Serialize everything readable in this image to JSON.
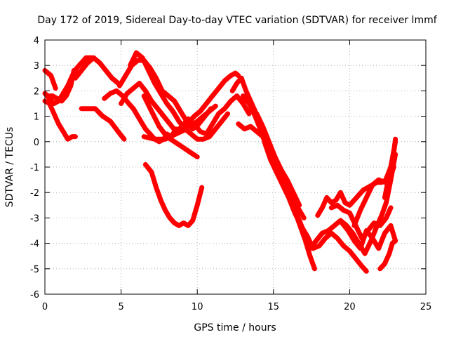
{
  "chart_data": {
    "type": "line",
    "title": "Day 172 of 2019, Sidereal Day-to-day VTEC variation (SDTVAR) for receiver lmmf",
    "xlabel": "GPS time / hours",
    "ylabel": "SDTVAR / TECUs",
    "xlim": [
      0,
      25
    ],
    "ylim": [
      -6,
      4
    ],
    "xticks": [
      "0",
      "5",
      "10",
      "15",
      "20",
      "25"
    ],
    "yticks": [
      "-6",
      "-5",
      "-4",
      "-3",
      "-2",
      "-1",
      "0",
      "1",
      "2",
      "3",
      "4"
    ],
    "grid": true,
    "color": "#ff0000",
    "series": [
      {
        "x": [
          0.0,
          0.3,
          0.6,
          0.9,
          1.2,
          1.5,
          1.8,
          2.1,
          2.4,
          2.7,
          3.1
        ],
        "y": [
          1.9,
          1.7,
          1.5,
          1.6,
          1.9,
          2.2,
          2.6,
          2.9,
          3.1,
          3.3,
          3.3
        ]
      },
      {
        "x": [
          0.0,
          0.4,
          0.7
        ],
        "y": [
          2.8,
          2.6,
          2.1
        ]
      },
      {
        "x": [
          0.0,
          0.3,
          0.6,
          0.9,
          1.2,
          1.5,
          1.8,
          2.0
        ],
        "y": [
          1.6,
          1.5,
          1.1,
          0.7,
          0.4,
          0.1,
          0.2,
          0.2
        ]
      },
      {
        "x": [
          0.2,
          0.5,
          0.8,
          1.1,
          1.4,
          1.7,
          1.9
        ],
        "y": [
          1.8,
          1.8,
          1.7,
          1.6,
          1.8,
          2.2,
          2.8
        ]
      },
      {
        "x": [
          2.4,
          2.8,
          3.3,
          3.8,
          4.3,
          4.8,
          5.2
        ],
        "y": [
          1.3,
          1.3,
          1.3,
          1.0,
          0.8,
          0.4,
          0.1
        ]
      },
      {
        "x": [
          2.0,
          2.4,
          2.8,
          3.2,
          3.6,
          4.0,
          4.4,
          4.8
        ],
        "y": [
          2.5,
          2.8,
          3.1,
          3.3,
          3.1,
          2.8,
          2.5,
          2.3
        ]
      },
      {
        "x": [
          3.9,
          4.3,
          4.7,
          5.1,
          5.5,
          5.8,
          6.1,
          6.4,
          6.6,
          6.9,
          7.2,
          7.5,
          7.8,
          8.0,
          8.3,
          8.6,
          8.9,
          9.2,
          9.5,
          9.8,
          10.2,
          10.6,
          11.0,
          11.4,
          11.8,
          12.2,
          12.5,
          12.7
        ],
        "y": [
          1.7,
          1.9,
          2.0,
          1.8,
          1.5,
          1.3,
          1.0,
          0.7,
          0.5,
          0.3,
          0.1,
          0.0,
          0.1,
          0.3,
          0.2,
          0.5,
          0.4,
          0.7,
          0.8,
          1.0,
          1.2,
          1.5,
          1.8,
          2.1,
          2.4,
          2.6,
          2.7,
          2.6
        ]
      },
      {
        "x": [
          4.9,
          5.3,
          5.7,
          6.1,
          6.5,
          6.9,
          7.3,
          7.7,
          8.1,
          8.5,
          8.9,
          9.3,
          9.7,
          10.1,
          10.5,
          10.9
        ],
        "y": [
          2.2,
          2.6,
          3.0,
          3.2,
          3.2,
          2.9,
          2.5,
          2.0,
          1.8,
          1.6,
          1.2,
          0.8,
          0.5,
          0.7,
          1.0,
          1.3
        ]
      },
      {
        "x": [
          5.0,
          5.4,
          5.8,
          6.2,
          6.6,
          7.0,
          7.4,
          7.8,
          8.2,
          8.6,
          9.0,
          9.4,
          9.8,
          10.2,
          10.6,
          11.0,
          11.4,
          11.8,
          12.2,
          12.6,
          13.0,
          13.4
        ],
        "y": [
          1.5,
          1.9,
          2.1,
          2.3,
          2.0,
          1.6,
          1.3,
          1.0,
          0.7,
          0.4,
          0.6,
          0.9,
          0.7,
          0.4,
          0.3,
          0.7,
          1.1,
          1.3,
          1.6,
          1.8,
          1.5,
          1.1
        ]
      },
      {
        "x": [
          5.6,
          6.0,
          6.4,
          6.8,
          7.2,
          7.6,
          8.0,
          8.4,
          8.8,
          9.2,
          9.6,
          10.0,
          10.4,
          10.8,
          11.2,
          11.6,
          12.0
        ],
        "y": [
          3.0,
          3.5,
          3.3,
          2.8,
          2.3,
          1.9,
          1.5,
          1.2,
          0.8,
          0.5,
          0.3,
          0.1,
          0.1,
          0.2,
          0.5,
          0.8,
          1.1
        ]
      },
      {
        "x": [
          6.5,
          7.0,
          7.5,
          8.0,
          8.5,
          9.0,
          9.5,
          10.0
        ],
        "y": [
          1.8,
          1.2,
          0.6,
          0.2,
          0.0,
          -0.2,
          -0.4,
          -0.6
        ]
      },
      {
        "x": [
          6.5,
          7.2,
          7.9,
          8.6,
          9.3,
          10.0,
          10.6,
          11.2
        ],
        "y": [
          0.2,
          0.1,
          0.1,
          0.3,
          0.5,
          0.8,
          1.1,
          1.4
        ]
      },
      {
        "x": [
          6.6,
          7.0,
          7.3,
          7.6,
          7.9,
          8.2,
          8.5,
          8.8,
          9.1,
          9.4,
          9.7,
          10.0,
          10.3
        ],
        "y": [
          -0.9,
          -1.2,
          -1.8,
          -2.3,
          -2.7,
          -3.0,
          -3.2,
          -3.3,
          -3.2,
          -3.3,
          -3.1,
          -2.5,
          -1.8
        ]
      },
      {
        "x": [
          12.3,
          12.6,
          12.9,
          13.2,
          13.5,
          13.8,
          14.1,
          14.4,
          14.7,
          15.0,
          15.3,
          15.6,
          15.9,
          16.2,
          16.5,
          16.8,
          17.1,
          17.4,
          17.7
        ],
        "y": [
          2.0,
          2.3,
          2.5,
          2.0,
          1.6,
          1.2,
          0.7,
          0.2,
          -0.2,
          -0.5,
          -1.0,
          -1.5,
          -2.0,
          -2.4,
          -2.9,
          -3.4,
          -3.9,
          -4.5,
          -5.0
        ]
      },
      {
        "x": [
          12.7,
          13.1,
          13.5,
          13.9,
          14.3,
          14.7,
          15.1,
          15.5,
          15.9,
          16.3,
          16.7,
          17.1,
          17.5
        ],
        "y": [
          0.7,
          0.5,
          0.6,
          0.4,
          0.2,
          -0.4,
          -0.9,
          -1.3,
          -1.9,
          -2.6,
          -3.1,
          -3.7,
          -4.1
        ]
      },
      {
        "x": [
          13.0,
          13.4,
          13.8,
          14.2,
          14.6,
          15.0,
          15.4,
          15.8,
          16.2,
          16.6,
          17.0
        ],
        "y": [
          1.8,
          1.5,
          1.0,
          0.4,
          -0.2,
          -0.8,
          -1.3,
          -1.7,
          -2.1,
          -2.6,
          -3.0
        ]
      },
      {
        "x": [
          13.5,
          13.9,
          14.3,
          14.7,
          15.1,
          15.5,
          15.9,
          16.3,
          16.7
        ],
        "y": [
          1.4,
          1.1,
          0.6,
          0.0,
          -0.6,
          -1.1,
          -1.5,
          -2.0,
          -2.5
        ]
      },
      {
        "x": [
          14.4,
          14.8,
          15.2,
          15.6,
          16.0,
          16.4,
          16.8,
          17.2,
          17.6,
          18.0,
          18.4,
          18.8,
          19.2,
          19.6,
          20.0,
          20.4,
          20.8,
          21.1
        ],
        "y": [
          0.0,
          -0.7,
          -1.2,
          -1.7,
          -2.2,
          -2.8,
          -3.3,
          -3.7,
          -4.2,
          -4.1,
          -3.8,
          -3.6,
          -3.8,
          -4.1,
          -4.3,
          -4.6,
          -4.9,
          -5.1
        ]
      },
      {
        "x": [
          17.4,
          17.8,
          18.2,
          18.6,
          19.0,
          19.4,
          19.8,
          20.2,
          20.6,
          21.0
        ],
        "y": [
          -4.2,
          -3.9,
          -3.6,
          -3.5,
          -3.3,
          -3.1,
          -3.3,
          -3.6,
          -4.0,
          -4.4
        ]
      },
      {
        "x": [
          17.9,
          18.2,
          18.5,
          18.8,
          19.1,
          19.4,
          19.7,
          20.0,
          20.3,
          20.6,
          20.9,
          21.2,
          21.5,
          21.8,
          22.1,
          22.4,
          22.7,
          22.9
        ],
        "y": [
          -2.9,
          -2.6,
          -2.2,
          -2.4,
          -2.3,
          -2.0,
          -2.4,
          -2.5,
          -2.3,
          -2.1,
          -1.9,
          -1.8,
          -1.7,
          -1.6,
          -1.6,
          -1.5,
          -1.3,
          -1.0
        ]
      },
      {
        "x": [
          18.8,
          19.2,
          19.6,
          20.0,
          20.4,
          20.8,
          21.2,
          21.6,
          22.0,
          22.4,
          22.7
        ],
        "y": [
          -2.6,
          -2.5,
          -2.7,
          -2.8,
          -3.3,
          -3.8,
          -3.5,
          -3.2,
          -3.3,
          -3.0,
          -2.6
        ]
      },
      {
        "x": [
          19.5,
          19.9,
          20.3,
          20.7,
          21.1,
          21.5,
          21.9,
          22.3,
          22.7,
          23.0
        ],
        "y": [
          -3.2,
          -3.5,
          -3.9,
          -4.2,
          -3.5,
          -3.8,
          -4.2,
          -3.6,
          -3.3,
          -3.9
        ]
      },
      {
        "x": [
          20.3,
          20.7,
          21.1,
          21.5,
          21.9,
          22.3,
          22.7,
          23.0
        ],
        "y": [
          -3.3,
          -2.7,
          -2.2,
          -1.7,
          -1.5,
          -1.6,
          -1.0,
          0.0
        ]
      },
      {
        "x": [
          21.0,
          21.4,
          21.8,
          22.1,
          22.4,
          22.7,
          23.0
        ],
        "y": [
          -4.4,
          -3.9,
          -3.3,
          -2.9,
          -2.4,
          -1.5,
          -0.5
        ]
      },
      {
        "x": [
          22.0,
          22.3,
          22.6,
          22.8,
          23.0
        ],
        "y": [
          -5.0,
          -4.8,
          -4.4,
          -4.0,
          -3.9
        ]
      },
      {
        "x": [
          22.3,
          22.6,
          22.9,
          23.0
        ],
        "y": [
          -2.2,
          -1.3,
          -0.4,
          0.1
        ]
      }
    ]
  }
}
